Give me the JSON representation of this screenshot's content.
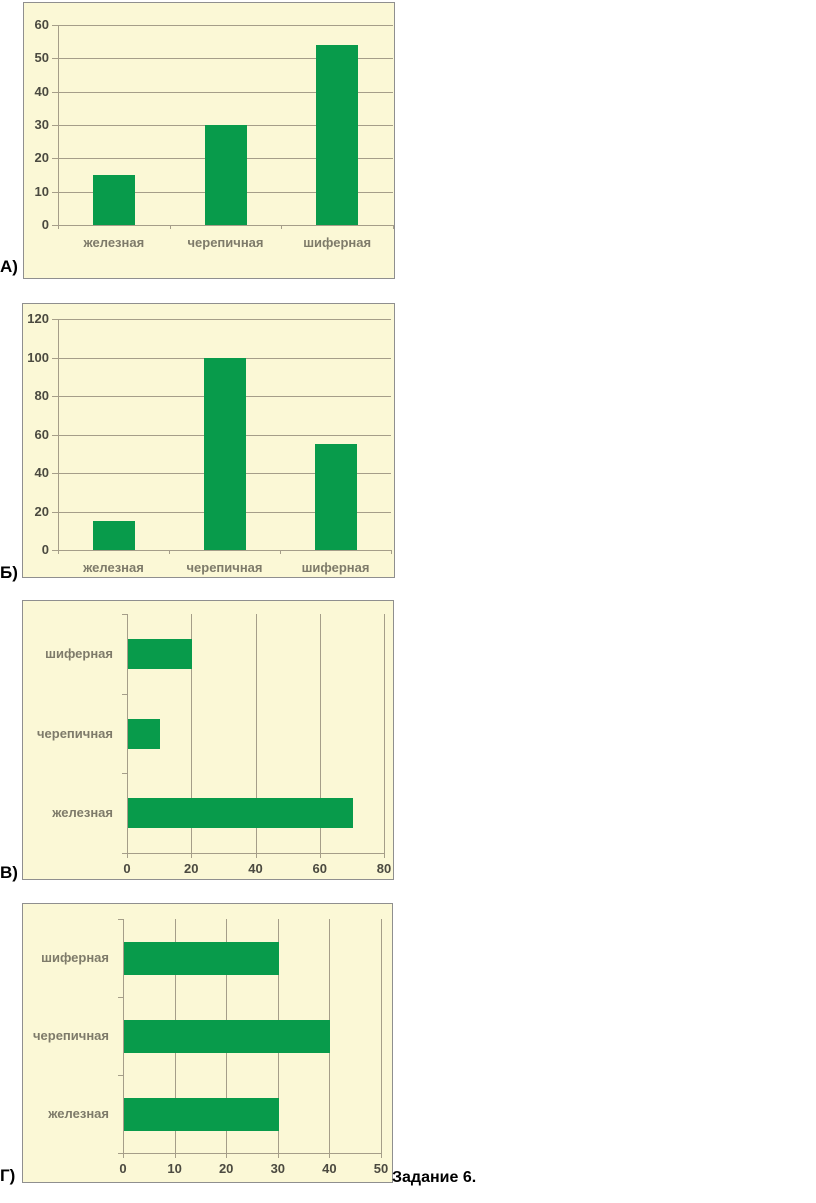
{
  "page": {
    "task_label": "Задание 6.",
    "colors": {
      "bar": "#089b4b",
      "panel_bg": "#fbf8d6",
      "panel_border": "#8f8f8f",
      "grid": "#a59e89",
      "tick_text": "#4b4a40",
      "category_text": "#7e7b6a",
      "label_text": "#000000"
    }
  },
  "chart_data": [
    {
      "id": "A",
      "panel_label": "А)",
      "type": "bar",
      "orientation": "vertical",
      "title": "",
      "xlabel": "",
      "ylabel": "",
      "categories": [
        "железная",
        "черепичная",
        "шиферная"
      ],
      "values": [
        15,
        30,
        54
      ],
      "axis": {
        "min": 0,
        "max": 60,
        "step": 10
      },
      "ticks": [
        0,
        10,
        20,
        30,
        40,
        50,
        60
      ],
      "grid": true,
      "legend": "none"
    },
    {
      "id": "Б",
      "panel_label": "Б)",
      "type": "bar",
      "orientation": "vertical",
      "title": "",
      "xlabel": "",
      "ylabel": "",
      "categories": [
        "железная",
        "черепичная",
        "шиферная"
      ],
      "values": [
        15,
        100,
        55
      ],
      "axis": {
        "min": 0,
        "max": 120,
        "step": 20
      },
      "ticks": [
        0,
        20,
        40,
        60,
        80,
        100,
        120
      ],
      "grid": true,
      "legend": "none"
    },
    {
      "id": "В",
      "panel_label": "В)",
      "type": "bar",
      "orientation": "horizontal",
      "title": "",
      "xlabel": "",
      "ylabel": "",
      "categories": [
        "шиферная",
        "черепичная",
        "железная"
      ],
      "values": [
        20,
        10,
        70
      ],
      "axis": {
        "min": 0,
        "max": 80,
        "step": 20
      },
      "ticks": [
        0,
        20,
        40,
        60,
        80
      ],
      "grid": true,
      "legend": "none"
    },
    {
      "id": "Г",
      "panel_label": "Г)",
      "type": "bar",
      "orientation": "horizontal",
      "title": "",
      "xlabel": "",
      "ylabel": "",
      "categories": [
        "шиферная",
        "черепичная",
        "железная"
      ],
      "values": [
        30,
        40,
        30
      ],
      "axis": {
        "min": 0,
        "max": 50,
        "step": 10
      },
      "ticks": [
        0,
        10,
        20,
        30,
        40,
        50
      ],
      "grid": true,
      "legend": "none"
    }
  ]
}
